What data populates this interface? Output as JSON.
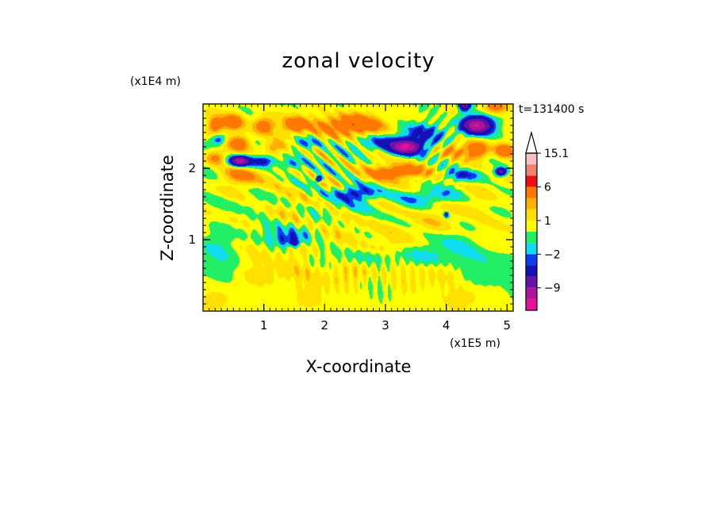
{
  "chart_data": {
    "type": "heatmap",
    "title": "zonal velocity",
    "xlabel": "X-coordinate",
    "ylabel": "Z-coordinate",
    "x_multiplier": "(x1E5 m)",
    "y_multiplier": "(x1E4 m)",
    "time_label": "t=131400 s",
    "xlim": [
      0,
      5.1
    ],
    "ylim": [
      0,
      2.9
    ],
    "x_ticks": [
      1,
      2,
      3,
      4,
      5
    ],
    "x_tick_labels": [
      "1",
      "2",
      "3",
      "4",
      "5"
    ],
    "y_ticks": [
      1,
      2
    ],
    "y_tick_labels": [
      "1",
      "2"
    ],
    "grid": false,
    "colorbar": {
      "labels": [
        "15.1",
        "6",
        "1",
        "−2",
        "−9"
      ],
      "label_values": [
        15.1,
        6,
        1,
        -2,
        -9
      ],
      "levels": [
        -16,
        -12,
        -9,
        -6,
        -3,
        -2,
        -1,
        0,
        1,
        2,
        3,
        6,
        9,
        12,
        15.1
      ],
      "colors": [
        "#e6109a",
        "#b0129a",
        "#6a12a8",
        "#1410b4",
        "#0a3cf0",
        "#10dcf0",
        "#22ee66",
        "#ffff00",
        "#ffe000",
        "#ffb000",
        "#ff7800",
        "#ee1010",
        "#f08070",
        "#f8c0c0"
      ],
      "extend": "max"
    },
    "features": [
      {
        "x": 2.5,
        "z": 1.2,
        "sx": 5.0,
        "sz": 0.6,
        "a": 0.8
      },
      {
        "x": 1.5,
        "z": 0.5,
        "sx": 0.9,
        "sz": 0.2,
        "a": 1.0
      },
      {
        "x": 0.8,
        "z": 0.15,
        "sx": 1.0,
        "sz": 0.15,
        "a": 0.6
      },
      {
        "x": 3.5,
        "z": 0.5,
        "sx": 1.0,
        "sz": 0.2,
        "a": 0.7
      },
      {
        "x": 4.5,
        "z": 0.2,
        "sx": 0.5,
        "sz": 0.15,
        "a": 0.8
      },
      {
        "x": 0.2,
        "z": 0.8,
        "sx": 0.4,
        "sz": 0.35,
        "a": -1.8
      },
      {
        "x": 1.2,
        "z": 1.1,
        "sx": 0.7,
        "sz": 0.15,
        "a": -2.0
      },
      {
        "x": 1.4,
        "z": 1.0,
        "sx": 0.25,
        "sz": 0.1,
        "a": -3.2
      },
      {
        "x": 3.0,
        "z": 0.75,
        "sx": 0.9,
        "sz": 0.12,
        "a": -1.8
      },
      {
        "x": 4.1,
        "z": 0.9,
        "sx": 0.6,
        "sz": 0.25,
        "a": -1.6
      },
      {
        "x": 4.8,
        "z": 0.6,
        "sx": 0.5,
        "sz": 0.3,
        "a": -1.6
      },
      {
        "x": 2.3,
        "z": 1.45,
        "sx": 0.7,
        "sz": 0.2,
        "a": -1.5
      },
      {
        "x": 0.3,
        "z": 1.5,
        "sx": 0.5,
        "sz": 0.15,
        "a": -1.2
      },
      {
        "x": 0.5,
        "z": 2.65,
        "sx": 0.18,
        "sz": 0.12,
        "a": 5
      },
      {
        "x": 1.0,
        "z": 2.6,
        "sx": 0.18,
        "sz": 0.12,
        "a": 4
      },
      {
        "x": 1.5,
        "z": 2.6,
        "sx": 0.22,
        "sz": 0.12,
        "a": 5
      },
      {
        "x": 0.2,
        "z": 2.6,
        "sx": 0.12,
        "sz": 0.12,
        "a": 4
      },
      {
        "x": 0.6,
        "z": 2.35,
        "sx": 0.18,
        "sz": 0.12,
        "a": 4
      },
      {
        "x": 1.2,
        "z": 2.3,
        "sx": 0.2,
        "sz": 0.1,
        "a": 3
      },
      {
        "x": 0.6,
        "z": 1.9,
        "sx": 0.3,
        "sz": 0.12,
        "a": 3
      },
      {
        "x": 0.2,
        "z": 2.15,
        "sx": 0.15,
        "sz": 0.1,
        "a": 3
      },
      {
        "x": 0.6,
        "z": 2.1,
        "sx": 0.16,
        "sz": 0.07,
        "a": -11
      },
      {
        "x": 0.25,
        "z": 2.4,
        "sx": 0.12,
        "sz": 0.08,
        "a": -4
      },
      {
        "x": 1.0,
        "z": 2.1,
        "sx": 0.2,
        "sz": 0.08,
        "a": -5
      },
      {
        "x": 1.4,
        "z": 2.05,
        "sx": 0.2,
        "sz": 0.08,
        "a": -3
      },
      {
        "x": 1.7,
        "z": 2.35,
        "sx": 0.25,
        "sz": 0.08,
        "a": -3
      },
      {
        "x": 1.9,
        "z": 1.85,
        "sx": 0.05,
        "sz": 0.04,
        "a": -10
      },
      {
        "x": 2.5,
        "z": 1.65,
        "sx": 0.4,
        "sz": 0.1,
        "a": -4
      },
      {
        "x": 2.5,
        "z": 2.6,
        "sx": 0.6,
        "sz": 0.15,
        "a": 5
      },
      {
        "x": 2.9,
        "z": 2.35,
        "sx": 0.4,
        "sz": 0.12,
        "a": -3
      },
      {
        "x": 3.35,
        "z": 2.3,
        "sx": 0.25,
        "sz": 0.1,
        "a": -12
      },
      {
        "x": 3.6,
        "z": 2.5,
        "sx": 0.35,
        "sz": 0.15,
        "a": -4
      },
      {
        "x": 3.2,
        "z": 1.95,
        "sx": 0.4,
        "sz": 0.1,
        "a": 5
      },
      {
        "x": 3.7,
        "z": 1.6,
        "sx": 0.5,
        "sz": 0.12,
        "a": -3
      },
      {
        "x": 4.5,
        "z": 2.6,
        "sx": 0.25,
        "sz": 0.12,
        "a": -12
      },
      {
        "x": 4.3,
        "z": 2.9,
        "sx": 0.1,
        "sz": 0.1,
        "a": -9
      },
      {
        "x": 4.8,
        "z": 2.85,
        "sx": 0.2,
        "sz": 0.1,
        "a": 4
      },
      {
        "x": 4.5,
        "z": 2.25,
        "sx": 0.18,
        "sz": 0.12,
        "a": 5
      },
      {
        "x": 4.95,
        "z": 2.25,
        "sx": 0.15,
        "sz": 0.1,
        "a": 5
      },
      {
        "x": 4.9,
        "z": 1.95,
        "sx": 0.1,
        "sz": 0.06,
        "a": -8
      },
      {
        "x": 4.1,
        "z": 2.25,
        "sx": 0.2,
        "sz": 0.1,
        "a": 3
      },
      {
        "x": 4.0,
        "z": 1.35,
        "sx": 0.04,
        "sz": 0.04,
        "a": -6
      },
      {
        "x": 4.3,
        "z": 1.9,
        "sx": 0.3,
        "sz": 0.08,
        "a": -3
      },
      {
        "x": 1.5,
        "z": 0.95,
        "sx": 0.1,
        "sz": 0.05,
        "a": -3
      }
    ],
    "waves": [
      {
        "kx": 25,
        "kz": 30,
        "phase": 0.0,
        "amp": 1.8,
        "x0": 2.1,
        "z0": 2.1,
        "sx": 0.7,
        "sz": 0.6
      },
      {
        "kx": -28,
        "kz": 28,
        "phase": 1.2,
        "amp": 1.6,
        "x0": 3.9,
        "z0": 2.3,
        "sx": 0.4,
        "sz": 0.5
      },
      {
        "kx": 40,
        "kz": 3,
        "phase": 0.5,
        "amp": 0.9,
        "x0": 2.8,
        "z0": 0.5,
        "sx": 1.2,
        "sz": 0.3
      },
      {
        "kx": 30,
        "kz": 8,
        "phase": 2.0,
        "amp": 1.0,
        "x0": 1.6,
        "z0": 1.1,
        "sx": 0.8,
        "sz": 0.5
      },
      {
        "kx": 6,
        "kz": 18,
        "phase": 0.8,
        "amp": 1.3,
        "x0": 2.5,
        "z0": 1.8,
        "sx": 3.0,
        "sz": 1.0
      }
    ]
  }
}
